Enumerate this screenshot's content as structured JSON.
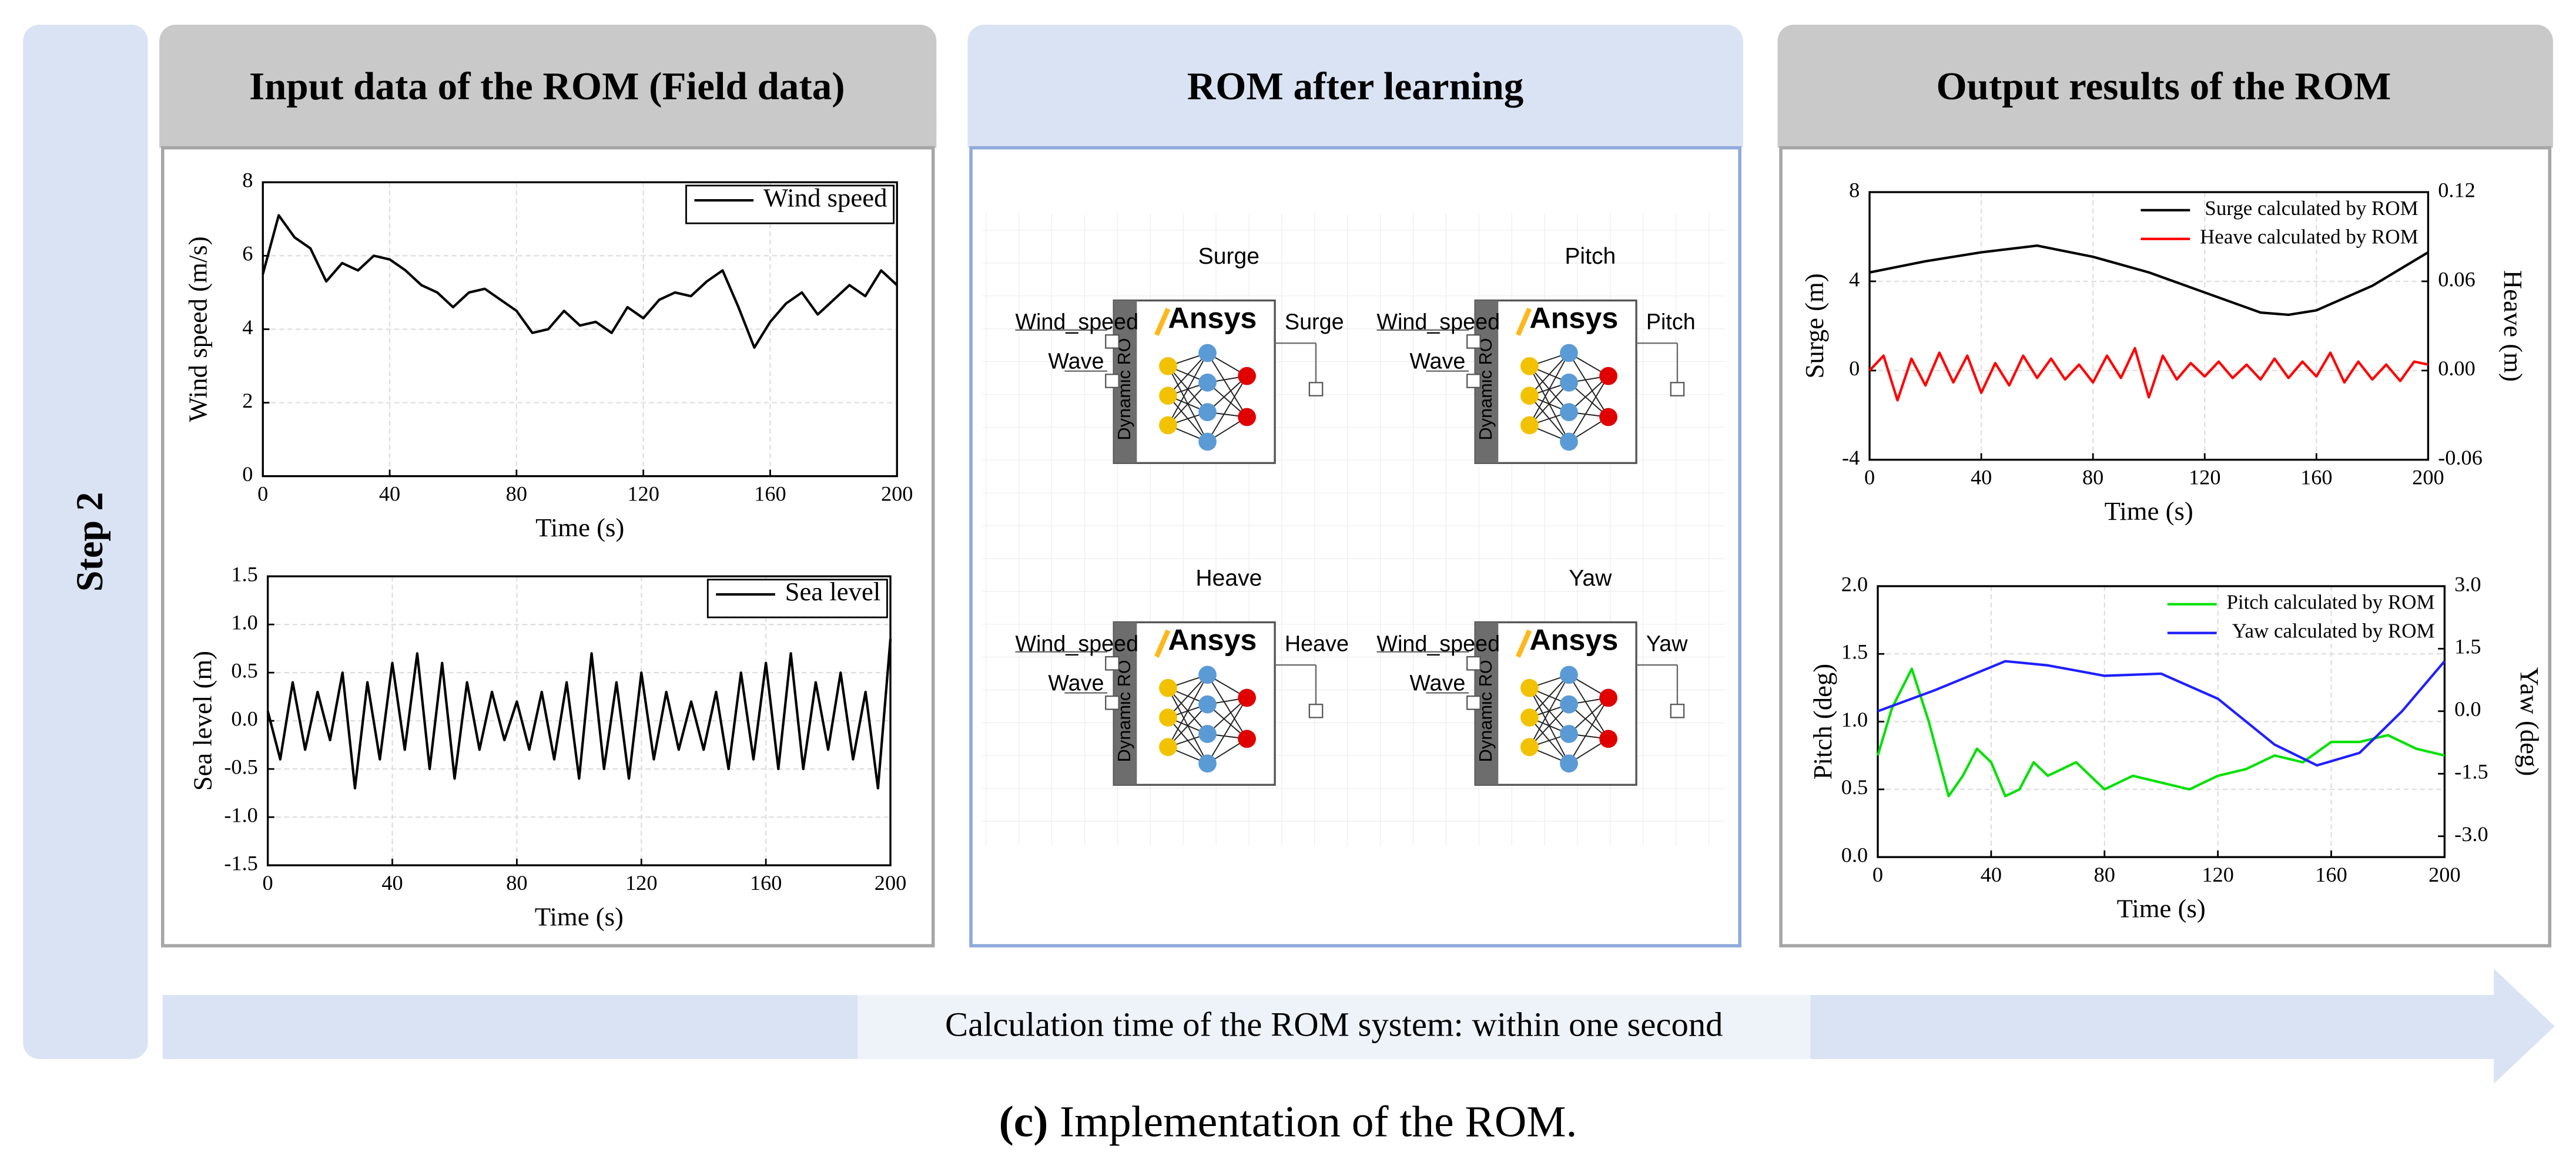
{
  "step": "Step 2",
  "panels": [
    {
      "title": "Input data of the ROM (Field data)"
    },
    {
      "title": "ROM after learning"
    },
    {
      "title": "Output results of the ROM"
    }
  ],
  "chart_data": [
    {
      "type": "line",
      "xlabel": "Time (s)",
      "ylabel": "Wind speed (m/s)",
      "xlim": [
        0,
        200
      ],
      "ylim": [
        0,
        8
      ],
      "xticks": [
        0,
        40,
        80,
        120,
        160,
        200
      ],
      "yticks": [
        0,
        2,
        4,
        6,
        8
      ],
      "grid": true,
      "legend": "upper right",
      "legend_frame": true,
      "x": [
        0,
        5,
        10,
        15,
        20,
        25,
        30,
        35,
        40,
        45,
        50,
        55,
        60,
        65,
        70,
        75,
        80,
        85,
        90,
        95,
        100,
        105,
        110,
        115,
        120,
        125,
        130,
        135,
        140,
        145,
        150,
        155,
        160,
        165,
        170,
        175,
        180,
        185,
        190,
        195,
        200
      ],
      "series": [
        {
          "name": "Wind speed",
          "color": "#000000",
          "values": [
            5.5,
            7.1,
            6.5,
            6.2,
            5.3,
            5.8,
            5.6,
            6.0,
            5.9,
            5.6,
            5.2,
            5.0,
            4.6,
            5.0,
            5.1,
            4.8,
            4.5,
            3.9,
            4.0,
            4.5,
            4.1,
            4.2,
            3.9,
            4.6,
            4.3,
            4.8,
            5.0,
            4.9,
            5.3,
            5.6,
            4.6,
            3.5,
            4.2,
            4.7,
            5.0,
            4.4,
            4.8,
            5.2,
            4.9,
            5.6,
            5.2
          ]
        }
      ]
    },
    {
      "type": "line",
      "xlabel": "Time (s)",
      "ylabel": "Sea level (m)",
      "xlim": [
        0,
        200
      ],
      "ylim": [
        -1.5,
        1.5
      ],
      "xticks": [
        0,
        40,
        80,
        120,
        160,
        200
      ],
      "yticks": [
        -1.5,
        {
          "value": -1,
          "label": "-1.0"
        },
        -0.5,
        {
          "value": 0,
          "label": "0.0"
        },
        0.5,
        {
          "value": 1,
          "label": "1.0"
        },
        1.5
      ],
      "grid": true,
      "legend": "upper right",
      "legend_frame": true,
      "x": [
        0,
        4,
        8,
        12,
        16,
        20,
        24,
        28,
        32,
        36,
        40,
        44,
        48,
        52,
        56,
        60,
        64,
        68,
        72,
        76,
        80,
        84,
        88,
        92,
        96,
        100,
        104,
        108,
        112,
        116,
        120,
        124,
        128,
        132,
        136,
        140,
        144,
        148,
        152,
        156,
        160,
        164,
        168,
        172,
        176,
        180,
        184,
        188,
        192,
        196,
        200
      ],
      "series": [
        {
          "name": "Sea level",
          "color": "#000000",
          "values": [
            0.1,
            -0.4,
            0.4,
            -0.3,
            0.3,
            -0.2,
            0.5,
            -0.7,
            0.4,
            -0.4,
            0.6,
            -0.3,
            0.7,
            -0.5,
            0.6,
            -0.6,
            0.4,
            -0.3,
            0.3,
            -0.2,
            0.2,
            -0.3,
            0.3,
            -0.4,
            0.4,
            -0.6,
            0.7,
            -0.5,
            0.4,
            -0.6,
            0.5,
            -0.4,
            0.3,
            -0.3,
            0.2,
            -0.3,
            0.3,
            -0.5,
            0.5,
            -0.4,
            0.6,
            -0.5,
            0.7,
            -0.5,
            0.4,
            -0.3,
            0.5,
            -0.4,
            0.3,
            -0.7,
            0.85
          ]
        }
      ]
    },
    {
      "type": "line",
      "xlabel": "Time (s)",
      "ylabel": "Surge (m)",
      "y2label": "Heave (m)",
      "xlim": [
        0,
        200
      ],
      "ylim": [
        -4,
        8
      ],
      "y2lim": [
        -0.06,
        0.12
      ],
      "xticks": [
        0,
        40,
        80,
        120,
        160,
        200
      ],
      "yticks": [
        -4,
        0,
        4,
        8
      ],
      "y2ticks": [
        -0.06,
        {
          "value": 0,
          "label": "0.00"
        },
        0.06,
        0.12
      ],
      "grid": true,
      "legend": "upper right",
      "legend_frame": false,
      "series": [
        {
          "name": "Surge calculated by ROM",
          "color": "#000000",
          "x": [
            0,
            20,
            40,
            60,
            80,
            100,
            120,
            140,
            150,
            160,
            180,
            200
          ],
          "values": [
            4.4,
            4.9,
            5.3,
            5.6,
            5.1,
            4.4,
            3.5,
            2.6,
            2.5,
            2.7,
            3.8,
            5.3
          ]
        },
        {
          "name": "Heave calculated by ROM",
          "color": "#ff0000",
          "axis": "y2",
          "x": [
            0,
            5,
            10,
            15,
            20,
            25,
            30,
            35,
            40,
            45,
            50,
            55,
            60,
            65,
            70,
            75,
            80,
            85,
            90,
            95,
            100,
            105,
            110,
            115,
            120,
            125,
            130,
            135,
            140,
            145,
            150,
            155,
            160,
            165,
            170,
            175,
            180,
            185,
            190,
            195,
            200
          ],
          "values": [
            0.0,
            0.01,
            -0.02,
            0.008,
            -0.01,
            0.012,
            -0.008,
            0.01,
            -0.015,
            0.005,
            -0.01,
            0.01,
            -0.005,
            0.008,
            -0.006,
            0.004,
            -0.008,
            0.01,
            -0.005,
            0.015,
            -0.018,
            0.01,
            -0.006,
            0.005,
            -0.004,
            0.006,
            -0.005,
            0.004,
            -0.006,
            0.008,
            -0.005,
            0.006,
            -0.004,
            0.012,
            -0.008,
            0.006,
            -0.006,
            0.004,
            -0.007,
            0.006,
            0.004
          ]
        }
      ]
    },
    {
      "type": "line",
      "xlabel": "Time (s)",
      "ylabel": "Pitch (deg)",
      "y2label": "Yaw (deg)",
      "xlim": [
        0,
        200
      ],
      "ylim": [
        0,
        2
      ],
      "y2lim": [
        -3.5,
        3
      ],
      "xticks": [
        0,
        40,
        80,
        120,
        160,
        200
      ],
      "yticks": [
        {
          "value": 0,
          "label": "0.0"
        },
        0.5,
        {
          "value": 1,
          "label": "1.0"
        },
        1.5,
        {
          "value": 2,
          "label": "2.0"
        }
      ],
      "y2ticks": [
        {
          "value": -3,
          "label": "-3.0"
        },
        -1.5,
        {
          "value": 0,
          "label": "0.0"
        },
        1.5,
        {
          "value": 3,
          "label": "3.0"
        }
      ],
      "grid": true,
      "legend": "upper right",
      "legend_frame": false,
      "series": [
        {
          "name": "Pitch calculated by ROM",
          "color": "#00e000",
          "x": [
            0,
            5,
            12,
            18,
            25,
            30,
            35,
            40,
            45,
            50,
            55,
            60,
            70,
            80,
            90,
            100,
            110,
            120,
            130,
            140,
            150,
            160,
            170,
            180,
            190,
            200
          ],
          "values": [
            0.75,
            1.1,
            1.39,
            1.0,
            0.45,
            0.6,
            0.8,
            0.7,
            0.45,
            0.5,
            0.7,
            0.6,
            0.7,
            0.5,
            0.6,
            0.55,
            0.5,
            0.6,
            0.65,
            0.75,
            0.7,
            0.85,
            0.85,
            0.9,
            0.8,
            0.75
          ]
        },
        {
          "name": "Yaw calculated by ROM",
          "color": "#1f1fff",
          "axis": "y2",
          "x": [
            0,
            20,
            45,
            60,
            80,
            100,
            120,
            140,
            155,
            170,
            185,
            200
          ],
          "values": [
            0.0,
            0.5,
            1.2,
            1.1,
            0.85,
            0.9,
            0.3,
            -0.8,
            -1.3,
            -1.0,
            0.0,
            1.2
          ]
        }
      ]
    }
  ],
  "rom": {
    "brand": "Ansys",
    "side_label": "Dynamic RO",
    "input_1": "Wind_speed",
    "input_2": "Wave",
    "blocks": [
      {
        "title": "Surge",
        "output": "Surge"
      },
      {
        "title": "Pitch",
        "output": "Pitch"
      },
      {
        "title": "Heave",
        "output": "Heave"
      },
      {
        "title": "Yaw",
        "output": "Yaw"
      }
    ]
  },
  "arrow_text": "Calculation time of the ROM system: within one second",
  "caption": {
    "label": "(c)",
    "text": "Implementation of the ROM."
  }
}
